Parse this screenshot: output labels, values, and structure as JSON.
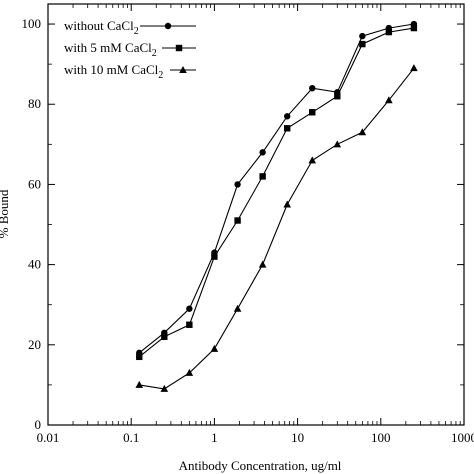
{
  "chart_data": {
    "type": "line",
    "xlabel": "Antibody Concentration, ug/ml",
    "ylabel": "% Bound",
    "xscale": "log",
    "xlim": [
      0.01,
      1000
    ],
    "ylim": [
      0,
      105
    ],
    "x_ticks": [
      0.01,
      0.1,
      1,
      10,
      100,
      1000
    ],
    "x_tick_labels": [
      "0.01",
      "0.1",
      "1",
      "10",
      "100",
      "1000"
    ],
    "y_ticks": [
      0,
      20,
      40,
      60,
      80,
      100
    ],
    "y_tick_labels": [
      "0",
      "20",
      "40",
      "60",
      "80",
      "100"
    ],
    "grid": false,
    "legend_position": "top-left",
    "series": [
      {
        "name": "without CaCl2",
        "marker": "circle",
        "x": [
          0.125,
          0.25,
          0.5,
          1,
          1.9,
          3.8,
          7.5,
          15,
          30,
          60,
          125,
          250
        ],
        "y": [
          18,
          23,
          29,
          43,
          60,
          68,
          77,
          84,
          83,
          97,
          99,
          100
        ]
      },
      {
        "name": "with 5 mM CaCl2",
        "marker": "square",
        "x": [
          0.125,
          0.25,
          0.5,
          1,
          1.9,
          3.8,
          7.5,
          15,
          30,
          60,
          125,
          250
        ],
        "y": [
          17,
          22,
          25,
          42,
          51,
          62,
          74,
          78,
          82,
          95,
          98,
          99
        ]
      },
      {
        "name": "with 10 mM CaCl2",
        "marker": "triangle",
        "x": [
          0.125,
          0.25,
          0.5,
          1,
          1.9,
          3.8,
          7.5,
          15,
          30,
          60,
          125,
          250
        ],
        "y": [
          10,
          9,
          13,
          19,
          29,
          40,
          55,
          66,
          70,
          73,
          81,
          89
        ]
      }
    ],
    "legend": [
      {
        "prefix": "without CaCl",
        "subscript": "2"
      },
      {
        "prefix": "with 5 mM CaCl",
        "subscript": "2"
      },
      {
        "prefix": "with 10 mM CaCl",
        "subscript": "2"
      }
    ]
  }
}
